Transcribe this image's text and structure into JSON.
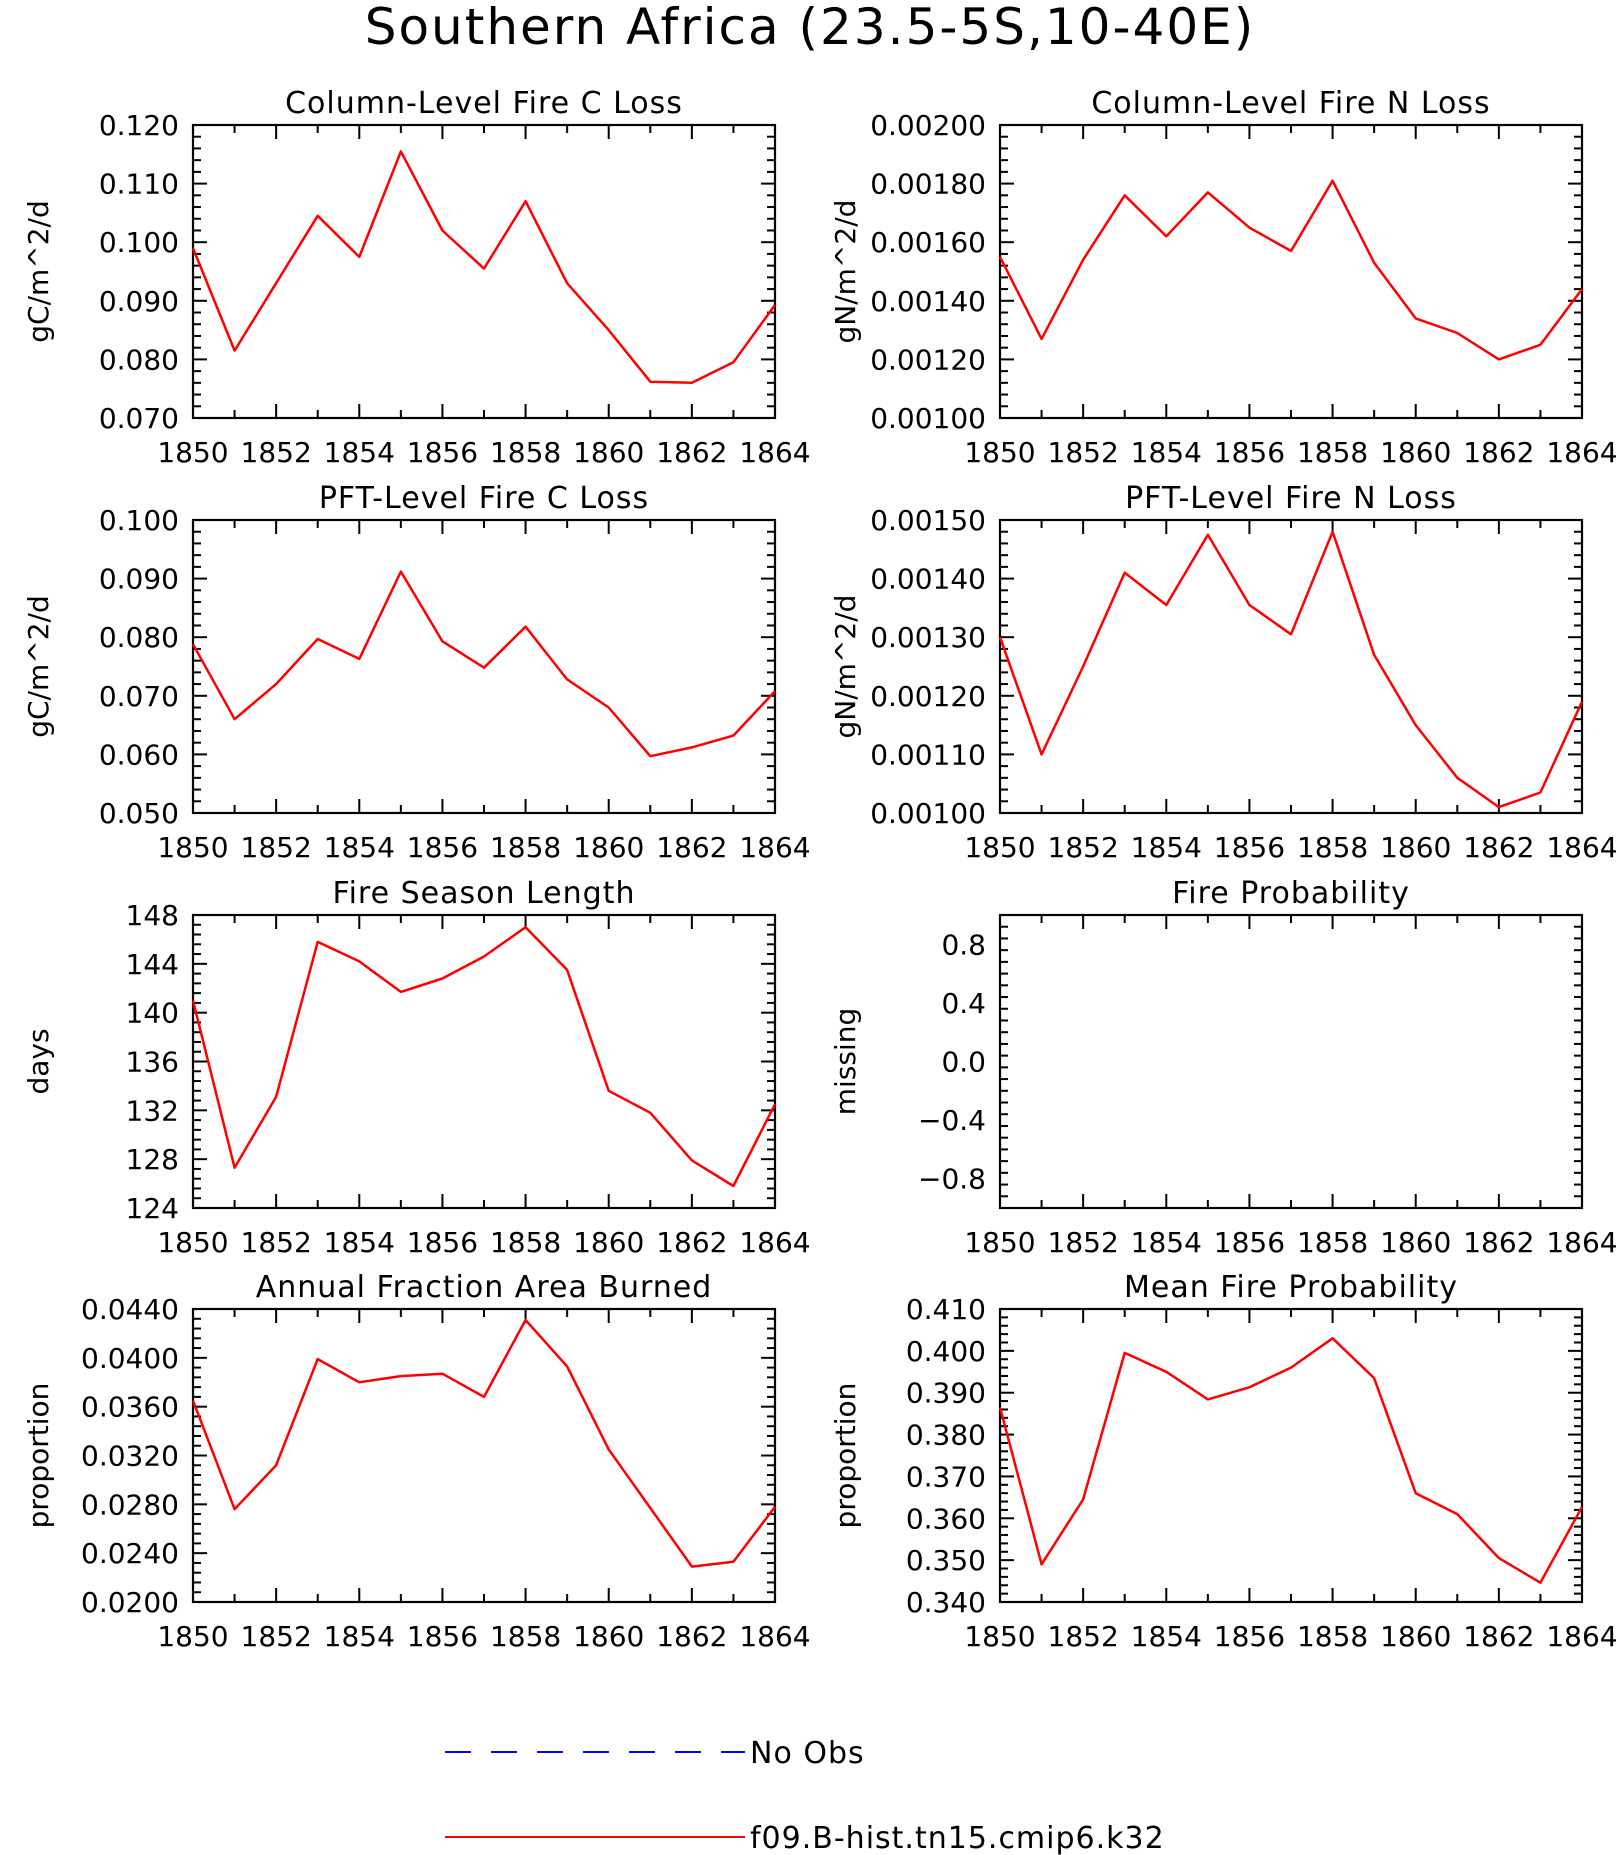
{
  "title": "Southern Africa (23.5-5S,10-40E)",
  "colors": {
    "model": "#ff0000",
    "obs": "#0000ff",
    "axis": "#000000"
  },
  "legend": {
    "obs_label": "No Obs",
    "model_label": "f09.B-hist.tn15.cmip6.k32"
  },
  "chart_data": [
    {
      "type": "line",
      "title": "Column-Level Fire C Loss",
      "ylabel": "gC/m^2/d",
      "x": [
        1850,
        1851,
        1852,
        1853,
        1854,
        1855,
        1856,
        1857,
        1858,
        1859,
        1860,
        1861,
        1862,
        1863,
        1864
      ],
      "xlim": [
        1850,
        1864
      ],
      "xticks": [
        "1850",
        "1852",
        "1854",
        "1856",
        "1858",
        "1860",
        "1862",
        "1864"
      ],
      "ylim": [
        0.07,
        0.12
      ],
      "yticks": [
        "0.070",
        "0.080",
        "0.090",
        "0.100",
        "0.110",
        "0.120"
      ],
      "series": [
        {
          "name": "f09.B-hist.tn15.cmip6.k32",
          "values": [
            0.099,
            0.0815,
            0.093,
            0.1045,
            0.0975,
            0.1155,
            0.102,
            0.0955,
            0.107,
            0.093,
            0.085,
            0.0762,
            0.076,
            0.0795,
            0.0893
          ]
        }
      ]
    },
    {
      "type": "line",
      "title": "Column-Level Fire N Loss",
      "ylabel": "gN/m^2/d",
      "x": [
        1850,
        1851,
        1852,
        1853,
        1854,
        1855,
        1856,
        1857,
        1858,
        1859,
        1860,
        1861,
        1862,
        1863,
        1864
      ],
      "xlim": [
        1850,
        1864
      ],
      "xticks": [
        "1850",
        "1852",
        "1854",
        "1856",
        "1858",
        "1860",
        "1862",
        "1864"
      ],
      "ylim": [
        0.001,
        0.002
      ],
      "yticks": [
        "0.00100",
        "0.00120",
        "0.00140",
        "0.00160",
        "0.00180",
        "0.00200"
      ],
      "series": [
        {
          "name": "f09.B-hist.tn15.cmip6.k32",
          "values": [
            0.00155,
            0.00127,
            0.00154,
            0.00176,
            0.00162,
            0.00177,
            0.00165,
            0.00157,
            0.00181,
            0.00153,
            0.00134,
            0.00129,
            0.0012,
            0.00125,
            0.00144
          ]
        }
      ]
    },
    {
      "type": "line",
      "title": "PFT-Level Fire C Loss",
      "ylabel": "gC/m^2/d",
      "x": [
        1850,
        1851,
        1852,
        1853,
        1854,
        1855,
        1856,
        1857,
        1858,
        1859,
        1860,
        1861,
        1862,
        1863,
        1864
      ],
      "xlim": [
        1850,
        1864
      ],
      "xticks": [
        "1850",
        "1852",
        "1854",
        "1856",
        "1858",
        "1860",
        "1862",
        "1864"
      ],
      "ylim": [
        0.05,
        0.1
      ],
      "yticks": [
        "0.050",
        "0.060",
        "0.070",
        "0.080",
        "0.090",
        "0.100"
      ],
      "series": [
        {
          "name": "f09.B-hist.tn15.cmip6.k32",
          "values": [
            0.0788,
            0.066,
            0.072,
            0.0797,
            0.0763,
            0.0912,
            0.0793,
            0.0748,
            0.0818,
            0.0728,
            0.068,
            0.0597,
            0.0612,
            0.0632,
            0.0708
          ]
        }
      ]
    },
    {
      "type": "line",
      "title": "PFT-Level Fire N Loss",
      "ylabel": "gN/m^2/d",
      "x": [
        1850,
        1851,
        1852,
        1853,
        1854,
        1855,
        1856,
        1857,
        1858,
        1859,
        1860,
        1861,
        1862,
        1863,
        1864
      ],
      "xlim": [
        1850,
        1864
      ],
      "xticks": [
        "1850",
        "1852",
        "1854",
        "1856",
        "1858",
        "1860",
        "1862",
        "1864"
      ],
      "ylim": [
        0.001,
        0.0015
      ],
      "yticks": [
        "0.00100",
        "0.00110",
        "0.00120",
        "0.00130",
        "0.00140",
        "0.00150"
      ],
      "series": [
        {
          "name": "f09.B-hist.tn15.cmip6.k32",
          "values": [
            0.0013,
            0.0011,
            0.00125,
            0.00141,
            0.001355,
            0.001475,
            0.001355,
            0.001305,
            0.00148,
            0.00127,
            0.00115,
            0.00106,
            0.00101,
            0.001035,
            0.00119
          ]
        }
      ]
    },
    {
      "type": "line",
      "title": "Fire Season Length",
      "ylabel": "days",
      "x": [
        1850,
        1851,
        1852,
        1853,
        1854,
        1855,
        1856,
        1857,
        1858,
        1859,
        1860,
        1861,
        1862,
        1863,
        1864
      ],
      "xlim": [
        1850,
        1864
      ],
      "xticks": [
        "1850",
        "1852",
        "1854",
        "1856",
        "1858",
        "1860",
        "1862",
        "1864"
      ],
      "ylim": [
        124,
        148
      ],
      "yticks": [
        "124",
        "128",
        "132",
        "136",
        "140",
        "144",
        "148"
      ],
      "series": [
        {
          "name": "f09.B-hist.tn15.cmip6.k32",
          "values": [
            141,
            127.3,
            133.1,
            145.8,
            144.2,
            141.7,
            142.8,
            144.6,
            147,
            143.5,
            133.6,
            131.8,
            127.9,
            125.8,
            132.5
          ]
        }
      ]
    },
    {
      "type": "line",
      "title": "Fire Probability",
      "ylabel": "missing",
      "x": [
        1850,
        1851,
        1852,
        1853,
        1854,
        1855,
        1856,
        1857,
        1858,
        1859,
        1860,
        1861,
        1862,
        1863,
        1864
      ],
      "xlim": [
        1850,
        1864
      ],
      "xticks": [
        "1850",
        "1852",
        "1854",
        "1856",
        "1858",
        "1860",
        "1862",
        "1864"
      ],
      "ylim": [
        -1.0,
        1.0
      ],
      "yticks": [
        "−0.8",
        "−0.4",
        "0.0",
        "0.4",
        "0.8"
      ],
      "series": []
    },
    {
      "type": "line",
      "title": "Annual Fraction Area Burned",
      "ylabel": "proportion",
      "x": [
        1850,
        1851,
        1852,
        1853,
        1854,
        1855,
        1856,
        1857,
        1858,
        1859,
        1860,
        1861,
        1862,
        1863,
        1864
      ],
      "xlim": [
        1850,
        1864
      ],
      "xticks": [
        "1850",
        "1852",
        "1854",
        "1856",
        "1858",
        "1860",
        "1862",
        "1864"
      ],
      "ylim": [
        0.02,
        0.044
      ],
      "yticks": [
        "0.0200",
        "0.0240",
        "0.0280",
        "0.0320",
        "0.0360",
        "0.0400",
        "0.0440"
      ],
      "series": [
        {
          "name": "f09.B-hist.tn15.cmip6.k32",
          "values": [
            0.0365,
            0.0276,
            0.0312,
            0.0399,
            0.038,
            0.0385,
            0.0387,
            0.0368,
            0.0431,
            0.0393,
            0.0325,
            0.0277,
            0.0229,
            0.0233,
            0.0278
          ]
        }
      ]
    },
    {
      "type": "line",
      "title": "Mean Fire Probability",
      "ylabel": "proportion",
      "x": [
        1850,
        1851,
        1852,
        1853,
        1854,
        1855,
        1856,
        1857,
        1858,
        1859,
        1860,
        1861,
        1862,
        1863,
        1864
      ],
      "xlim": [
        1850,
        1864
      ],
      "xticks": [
        "1850",
        "1852",
        "1854",
        "1856",
        "1858",
        "1860",
        "1862",
        "1864"
      ],
      "ylim": [
        0.34,
        0.41
      ],
      "yticks": [
        "0.340",
        "0.350",
        "0.360",
        "0.370",
        "0.380",
        "0.390",
        "0.400",
        "0.410"
      ],
      "series": [
        {
          "name": "f09.B-hist.tn15.cmip6.k32",
          "values": [
            0.3865,
            0.349,
            0.3645,
            0.3995,
            0.395,
            0.3884,
            0.3913,
            0.396,
            0.403,
            0.3935,
            0.366,
            0.361,
            0.3505,
            0.3446,
            0.3627
          ]
        }
      ]
    }
  ]
}
